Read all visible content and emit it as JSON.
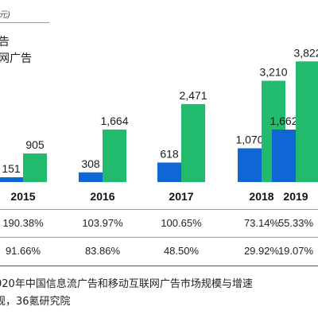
{
  "header": {
    "unit_text": "元)",
    "legend": [
      {
        "label": "告",
        "color": "#0f66d4"
      },
      {
        "label": "网广告",
        "color": "#22bb6e"
      }
    ]
  },
  "chart_data": {
    "type": "bar",
    "categories": [
      "2015",
      "2016",
      "2017",
      "2018",
      "2019"
    ],
    "series": [
      {
        "values": [
          151,
          308,
          618,
          1070,
          1662
        ],
        "labels": [
          "151",
          "308",
          "618",
          "1,070",
          "1,662"
        ],
        "color": "#0f66d4"
      },
      {
        "values": [
          905,
          1664,
          2471,
          3210,
          3822
        ],
        "labels": [
          "905",
          "1,664",
          "2,471",
          "3,210",
          "3,822"
        ],
        "color": "#22bb6e"
      }
    ],
    "ylim": [
      0,
      4000
    ],
    "growth_rows": [
      [
        "190.38%",
        "103.97%",
        "100.65%",
        "73.14%",
        "55.33%"
      ],
      [
        "91.66%",
        "83.86%",
        "48.50%",
        "29.92%",
        "19.07%"
      ]
    ]
  },
  "caption": {
    "line1": "020年中国信息流广告和移动互联网广告市场规模与增速",
    "line2": "规，36氪研究院"
  }
}
